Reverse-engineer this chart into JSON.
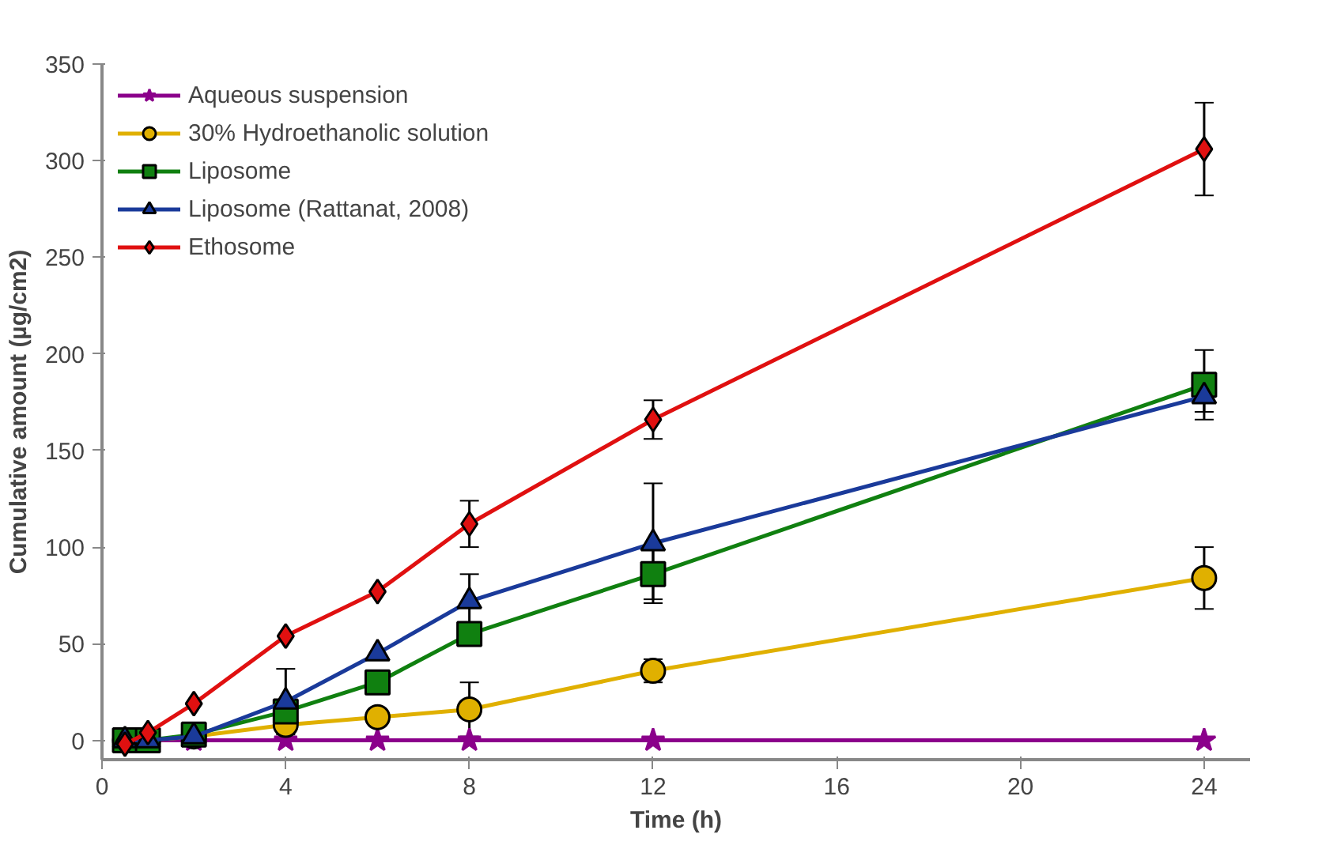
{
  "chart_data": {
    "type": "line",
    "xlabel": "Time (h)",
    "ylabel": "Cumulative amount (µg/cm2)",
    "xlim": [
      0,
      25
    ],
    "xticks": [
      0,
      4,
      8,
      12,
      16,
      20,
      24
    ],
    "ylim": [
      -10,
      350
    ],
    "yticks": [
      0,
      50,
      100,
      150,
      200,
      250,
      300,
      350
    ],
    "grid": false,
    "legend": "top left",
    "x": [
      0.5,
      1,
      2,
      4,
      6,
      8,
      12,
      24
    ],
    "series": [
      {
        "name": "Aqueous suspension",
        "color": "#8b008b",
        "marker": "star",
        "values": [
          0,
          0,
          0,
          0,
          0,
          0,
          0,
          0
        ]
      },
      {
        "name": "30% Hydroethanolic solution",
        "color": "#e0b000",
        "marker": "circle",
        "values": [
          0,
          0,
          2,
          8,
          12,
          16,
          36,
          84
        ],
        "errors": [
          null,
          null,
          null,
          null,
          null,
          14,
          6,
          16
        ]
      },
      {
        "name": "Liposome",
        "color": "#108010",
        "marker": "square",
        "values": [
          0,
          0,
          3,
          15,
          30,
          55,
          86,
          184
        ],
        "errors": [
          null,
          null,
          null,
          null,
          null,
          null,
          13,
          18
        ]
      },
      {
        "name": "Liposome (Rattanat, 2008)",
        "color": "#1a3a9a",
        "marker": "triangle",
        "values": [
          0,
          0,
          2,
          20,
          45,
          72,
          102,
          178
        ],
        "errors": [
          null,
          null,
          null,
          17,
          null,
          14,
          31,
          8
        ]
      },
      {
        "name": "Ethosome",
        "color": "#e01010",
        "marker": "diamond",
        "values": [
          -2,
          4,
          19,
          54,
          77,
          112,
          166,
          306
        ],
        "errors": [
          null,
          null,
          null,
          null,
          null,
          12,
          10,
          24
        ]
      }
    ]
  }
}
